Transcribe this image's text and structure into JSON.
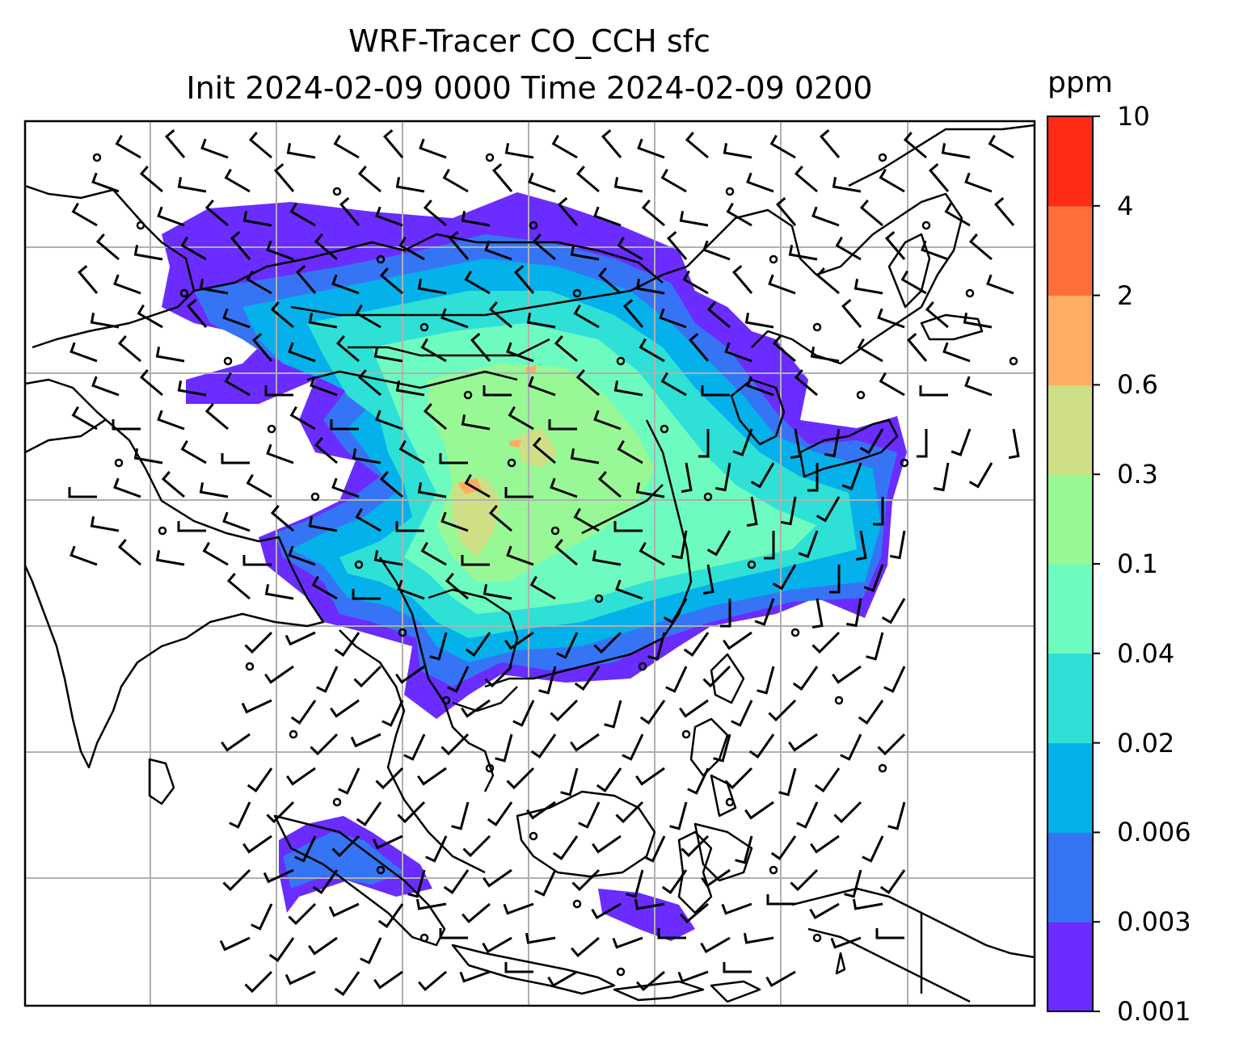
{
  "title": "WRF-Tracer CO_CCH sfc",
  "subtitle": "Init 2024-02-09 0000 Time 2024-02-09 0200",
  "colorbar": {
    "unit": "ppm",
    "levels": [
      "0.001",
      "0.003",
      "0.006",
      "0.02",
      "0.04",
      "0.1",
      "0.3",
      "0.6",
      "2",
      "4",
      "10"
    ],
    "colors": [
      "#6a2cff",
      "#3575f5",
      "#04b1ea",
      "#2ee0d6",
      "#6efbbf",
      "#98f896",
      "#cedf86",
      "#ffad60",
      "#ff6d3a",
      "#ff2b17"
    ]
  },
  "map": {
    "grid_lines": "on",
    "grid_color": "#b0b0b0",
    "coastline_color": "#000000",
    "overlay": "wind barbs",
    "field": "surface CO tracer concentration (filled contours)"
  }
}
